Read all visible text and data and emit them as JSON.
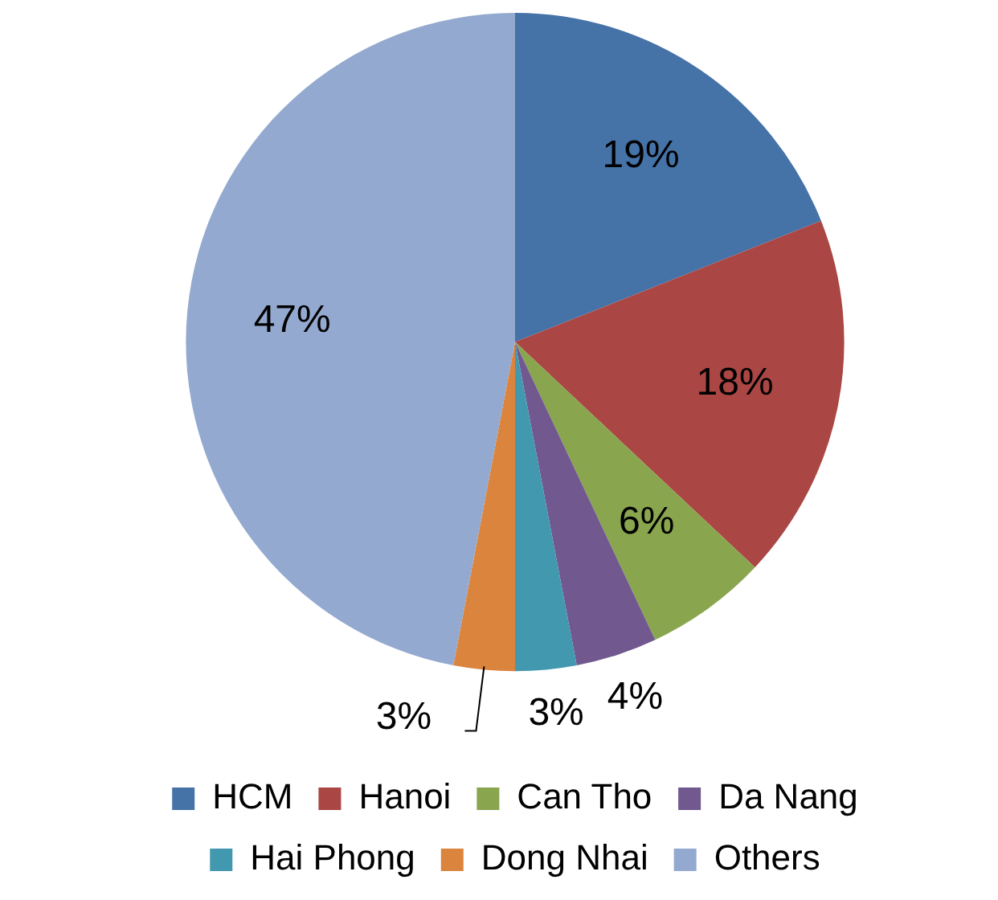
{
  "chart_data": {
    "type": "pie",
    "categories": [
      "HCM",
      "Hanoi",
      "Can Tho",
      "Da Nang",
      "Hai Phong",
      "Dong Nhai",
      "Others"
    ],
    "values": [
      19,
      18,
      6,
      4,
      3,
      3,
      47
    ],
    "colors": [
      "#4572a7",
      "#aa4643",
      "#89a54e",
      "#71588f",
      "#4198af",
      "#db843d",
      "#93a9cf"
    ],
    "value_labels": [
      "19%",
      "18%",
      "6%",
      "4%",
      "3%",
      "3%",
      "47%"
    ],
    "legend": "bottom"
  }
}
